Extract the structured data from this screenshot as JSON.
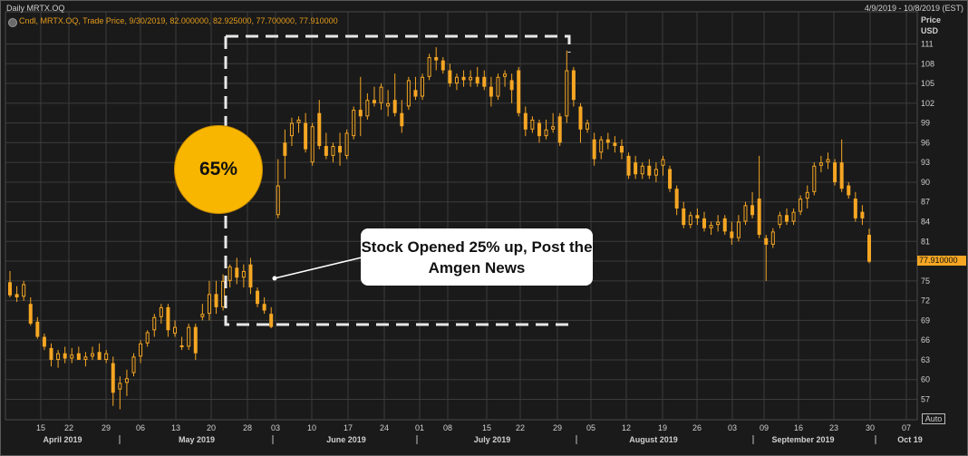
{
  "header": {
    "title": "Daily MRTX.OQ",
    "date_range": "4/9/2019 - 10/8/2019 (EST)"
  },
  "legend": {
    "text": "Cndl, MRTX.OQ, Trade Price, 9/30/2019, 82.000000, 82.925000, 77.700000, 77.910000"
  },
  "y_axis": {
    "title_line1": "Price",
    "title_line2": "USD",
    "ticks": [
      "111",
      "108",
      "105",
      "102",
      "99",
      "96",
      "93",
      "90",
      "87",
      "84",
      "81",
      "78",
      "75",
      "72",
      "69",
      "66",
      "63",
      "60",
      "57"
    ],
    "last_price_label": "77.910000"
  },
  "x_axis": {
    "day_ticks": [
      "15",
      "22",
      "29",
      "06",
      "13",
      "20",
      "28",
      "03",
      "10",
      "17",
      "24",
      "01",
      "08",
      "15",
      "22",
      "29",
      "05",
      "12",
      "19",
      "26",
      "03",
      "09",
      "16",
      "23",
      "30",
      "07"
    ],
    "months": [
      "April 2019",
      "May 2019",
      "June 2019",
      "July 2019",
      "August 2019",
      "September 2019",
      "Oct 19"
    ],
    "auto_label": "Auto"
  },
  "annotations": {
    "percent_label": "65%",
    "callout_text": "Stock Opened 25% up, Post the Amgen News"
  },
  "colors": {
    "background": "#1a1a1a",
    "candle": "#f5a623",
    "grid": "#3c3c3c",
    "callout_bg": "#ffffff",
    "circle_fill": "#f9b600",
    "dashed_box": "#e8e8e8"
  },
  "chart_data": {
    "type": "candlestick",
    "title": "Daily MRTX.OQ",
    "ylabel": "Price USD",
    "ylim": [
      55,
      112
    ],
    "grid": true,
    "series": [
      {
        "name": "MRTX.OQ",
        "ohlc": [
          [
            74.8,
            76.5,
            72.5,
            72.8
          ],
          [
            73.0,
            74.2,
            71.8,
            72.5
          ],
          [
            72.6,
            75.0,
            72.0,
            74.5
          ],
          [
            71.5,
            72.5,
            68.2,
            68.5
          ],
          [
            68.8,
            69.5,
            66.2,
            66.5
          ],
          [
            66.5,
            67.0,
            64.5,
            65.0
          ],
          [
            64.8,
            65.5,
            62.0,
            63.0
          ],
          [
            63.0,
            64.5,
            61.8,
            64.0
          ],
          [
            64.0,
            65.0,
            62.5,
            63.2
          ],
          [
            63.2,
            64.8,
            62.5,
            63.8
          ],
          [
            64.0,
            65.0,
            63.0,
            63.0
          ],
          [
            63.0,
            64.2,
            62.0,
            63.5
          ],
          [
            63.5,
            65.0,
            63.0,
            64.0
          ],
          [
            64.2,
            65.5,
            63.5,
            63.0
          ],
          [
            63.0,
            64.5,
            62.5,
            64.0
          ],
          [
            62.5,
            63.5,
            56.0,
            58.0
          ],
          [
            58.5,
            60.5,
            55.5,
            59.5
          ],
          [
            59.5,
            61.5,
            57.5,
            60.2
          ],
          [
            61.0,
            64.0,
            60.5,
            63.5
          ],
          [
            63.5,
            66.0,
            62.5,
            65.5
          ],
          [
            65.5,
            67.5,
            65.0,
            67.2
          ],
          [
            67.5,
            70.0,
            66.5,
            69.5
          ],
          [
            69.5,
            71.5,
            68.5,
            71.0
          ],
          [
            71.0,
            71.5,
            66.5,
            67.5
          ],
          [
            67.0,
            69.0,
            66.5,
            68.0
          ],
          [
            65.0,
            66.5,
            64.5,
            65.2
          ],
          [
            65.0,
            68.5,
            64.5,
            68.0
          ],
          [
            68.0,
            68.5,
            63.0,
            64.0
          ],
          [
            69.5,
            71.5,
            69.0,
            70.0
          ],
          [
            70.0,
            75.0,
            69.0,
            73.0
          ],
          [
            73.0,
            75.0,
            70.0,
            71.0
          ],
          [
            71.0,
            76.0,
            70.5,
            75.0
          ],
          [
            75.0,
            77.5,
            74.0,
            77.2
          ],
          [
            77.0,
            78.5,
            74.5,
            75.5
          ],
          [
            75.5,
            77.5,
            74.0,
            76.5
          ],
          [
            77.5,
            78.5,
            73.0,
            74.0
          ],
          [
            73.5,
            74.0,
            71.0,
            71.5
          ],
          [
            71.5,
            72.5,
            70.0,
            70.5
          ],
          [
            70.0,
            71.0,
            67.8,
            68.0
          ],
          [
            85.0,
            93.5,
            84.5,
            89.5
          ],
          [
            96.0,
            98.0,
            90.5,
            94.0
          ],
          [
            97.0,
            99.8,
            95.5,
            99.0
          ],
          [
            99.0,
            100.0,
            97.5,
            99.5
          ],
          [
            99.0,
            100.5,
            94.5,
            95.0
          ],
          [
            93.0,
            99.0,
            92.5,
            98.5
          ],
          [
            100.5,
            102.5,
            95.0,
            95.5
          ],
          [
            95.5,
            97.5,
            93.5,
            94.0
          ],
          [
            94.0,
            96.0,
            93.0,
            95.5
          ],
          [
            95.5,
            97.5,
            92.5,
            94.5
          ],
          [
            94.0,
            98.0,
            93.5,
            97.5
          ],
          [
            97.0,
            101.5,
            96.5,
            101.0
          ],
          [
            101.0,
            106.0,
            97.0,
            100.0
          ],
          [
            100.0,
            103.5,
            99.5,
            102.5
          ],
          [
            102.5,
            104.5,
            101.5,
            102.0
          ],
          [
            102.0,
            105.0,
            101.0,
            104.5
          ],
          [
            101.5,
            104.0,
            100.0,
            102.0
          ],
          [
            102.5,
            106.5,
            100.0,
            100.5
          ],
          [
            100.5,
            102.5,
            97.5,
            98.5
          ],
          [
            101.5,
            106.0,
            101.0,
            105.5
          ],
          [
            104.0,
            106.0,
            102.5,
            103.0
          ],
          [
            103.0,
            106.5,
            102.5,
            106.0
          ],
          [
            106.0,
            109.5,
            105.5,
            109.0
          ],
          [
            109.0,
            110.5,
            107.0,
            108.5
          ],
          [
            108.5,
            109.0,
            106.5,
            107.0
          ],
          [
            107.0,
            108.0,
            104.5,
            105.0
          ],
          [
            105.0,
            106.5,
            104.0,
            106.0
          ],
          [
            106.0,
            107.0,
            104.5,
            105.5
          ],
          [
            105.5,
            107.0,
            104.5,
            106.0
          ],
          [
            106.0,
            107.5,
            104.5,
            105.0
          ],
          [
            106.0,
            107.0,
            104.0,
            104.5
          ],
          [
            104.5,
            106.0,
            101.5,
            103.0
          ],
          [
            103.0,
            106.5,
            102.5,
            106.0
          ],
          [
            106.0,
            107.0,
            104.5,
            106.5
          ],
          [
            105.5,
            106.5,
            102.0,
            104.0
          ],
          [
            107.0,
            107.5,
            100.0,
            100.5
          ],
          [
            100.5,
            101.5,
            97.0,
            98.0
          ],
          [
            98.0,
            100.0,
            97.5,
            99.5
          ],
          [
            99.0,
            99.5,
            96.0,
            97.0
          ],
          [
            97.0,
            99.5,
            96.5,
            98.0
          ],
          [
            98.0,
            100.5,
            97.5,
            98.5
          ],
          [
            100.0,
            100.5,
            95.5,
            96.0
          ],
          [
            100.0,
            110.0,
            99.0,
            107.0
          ],
          [
            107.0,
            107.5,
            101.5,
            102.5
          ],
          [
            101.5,
            102.0,
            96.0,
            98.0
          ],
          [
            98.0,
            99.5,
            97.5,
            99.0
          ],
          [
            96.5,
            97.5,
            92.5,
            93.5
          ],
          [
            94.5,
            97.0,
            93.5,
            96.5
          ],
          [
            96.5,
            97.5,
            95.0,
            96.0
          ],
          [
            96.0,
            97.0,
            94.5,
            95.5
          ],
          [
            95.5,
            96.5,
            93.5,
            94.5
          ],
          [
            94.0,
            94.5,
            90.5,
            91.0
          ],
          [
            93.0,
            94.0,
            90.5,
            91.2
          ],
          [
            91.2,
            93.0,
            90.5,
            92.5
          ],
          [
            92.5,
            93.5,
            90.5,
            91.0
          ],
          [
            91.0,
            93.0,
            90.0,
            92.0
          ],
          [
            92.5,
            94.0,
            91.0,
            93.5
          ],
          [
            92.0,
            92.5,
            88.5,
            89.0
          ],
          [
            89.0,
            89.5,
            85.0,
            86.0
          ],
          [
            86.0,
            87.0,
            83.0,
            83.5
          ],
          [
            83.5,
            85.5,
            83.0,
            85.0
          ],
          [
            85.0,
            86.0,
            83.5,
            84.5
          ],
          [
            84.5,
            85.5,
            82.5,
            83.0
          ],
          [
            83.0,
            84.0,
            82.0,
            83.5
          ],
          [
            83.5,
            85.0,
            82.5,
            84.0
          ],
          [
            84.5,
            85.0,
            82.0,
            82.5
          ],
          [
            82.5,
            84.0,
            80.5,
            81.5
          ],
          [
            81.5,
            85.0,
            81.0,
            84.0
          ],
          [
            84.0,
            87.0,
            83.5,
            86.5
          ],
          [
            86.5,
            88.5,
            84.5,
            85.0
          ],
          [
            87.5,
            94.0,
            81.5,
            82.0
          ],
          [
            81.5,
            82.0,
            75.0,
            80.5
          ],
          [
            80.5,
            83.0,
            80.0,
            82.5
          ],
          [
            83.5,
            85.5,
            83.0,
            85.0
          ],
          [
            85.0,
            86.0,
            83.5,
            84.0
          ],
          [
            84.0,
            86.0,
            83.5,
            85.5
          ],
          [
            85.5,
            88.0,
            85.0,
            87.5
          ],
          [
            87.5,
            89.5,
            86.0,
            88.5
          ],
          [
            88.5,
            93.0,
            88.0,
            92.5
          ],
          [
            92.5,
            94.0,
            91.5,
            93.0
          ],
          [
            93.0,
            94.5,
            92.0,
            93.5
          ],
          [
            93.0,
            93.5,
            89.5,
            90.0
          ],
          [
            93.0,
            96.5,
            88.5,
            89.0
          ],
          [
            89.5,
            90.0,
            87.5,
            88.0
          ],
          [
            87.5,
            88.5,
            84.0,
            84.5
          ],
          [
            85.5,
            86.5,
            83.5,
            84.5
          ],
          [
            82.0,
            82.925,
            77.7,
            77.91
          ]
        ]
      }
    ]
  }
}
